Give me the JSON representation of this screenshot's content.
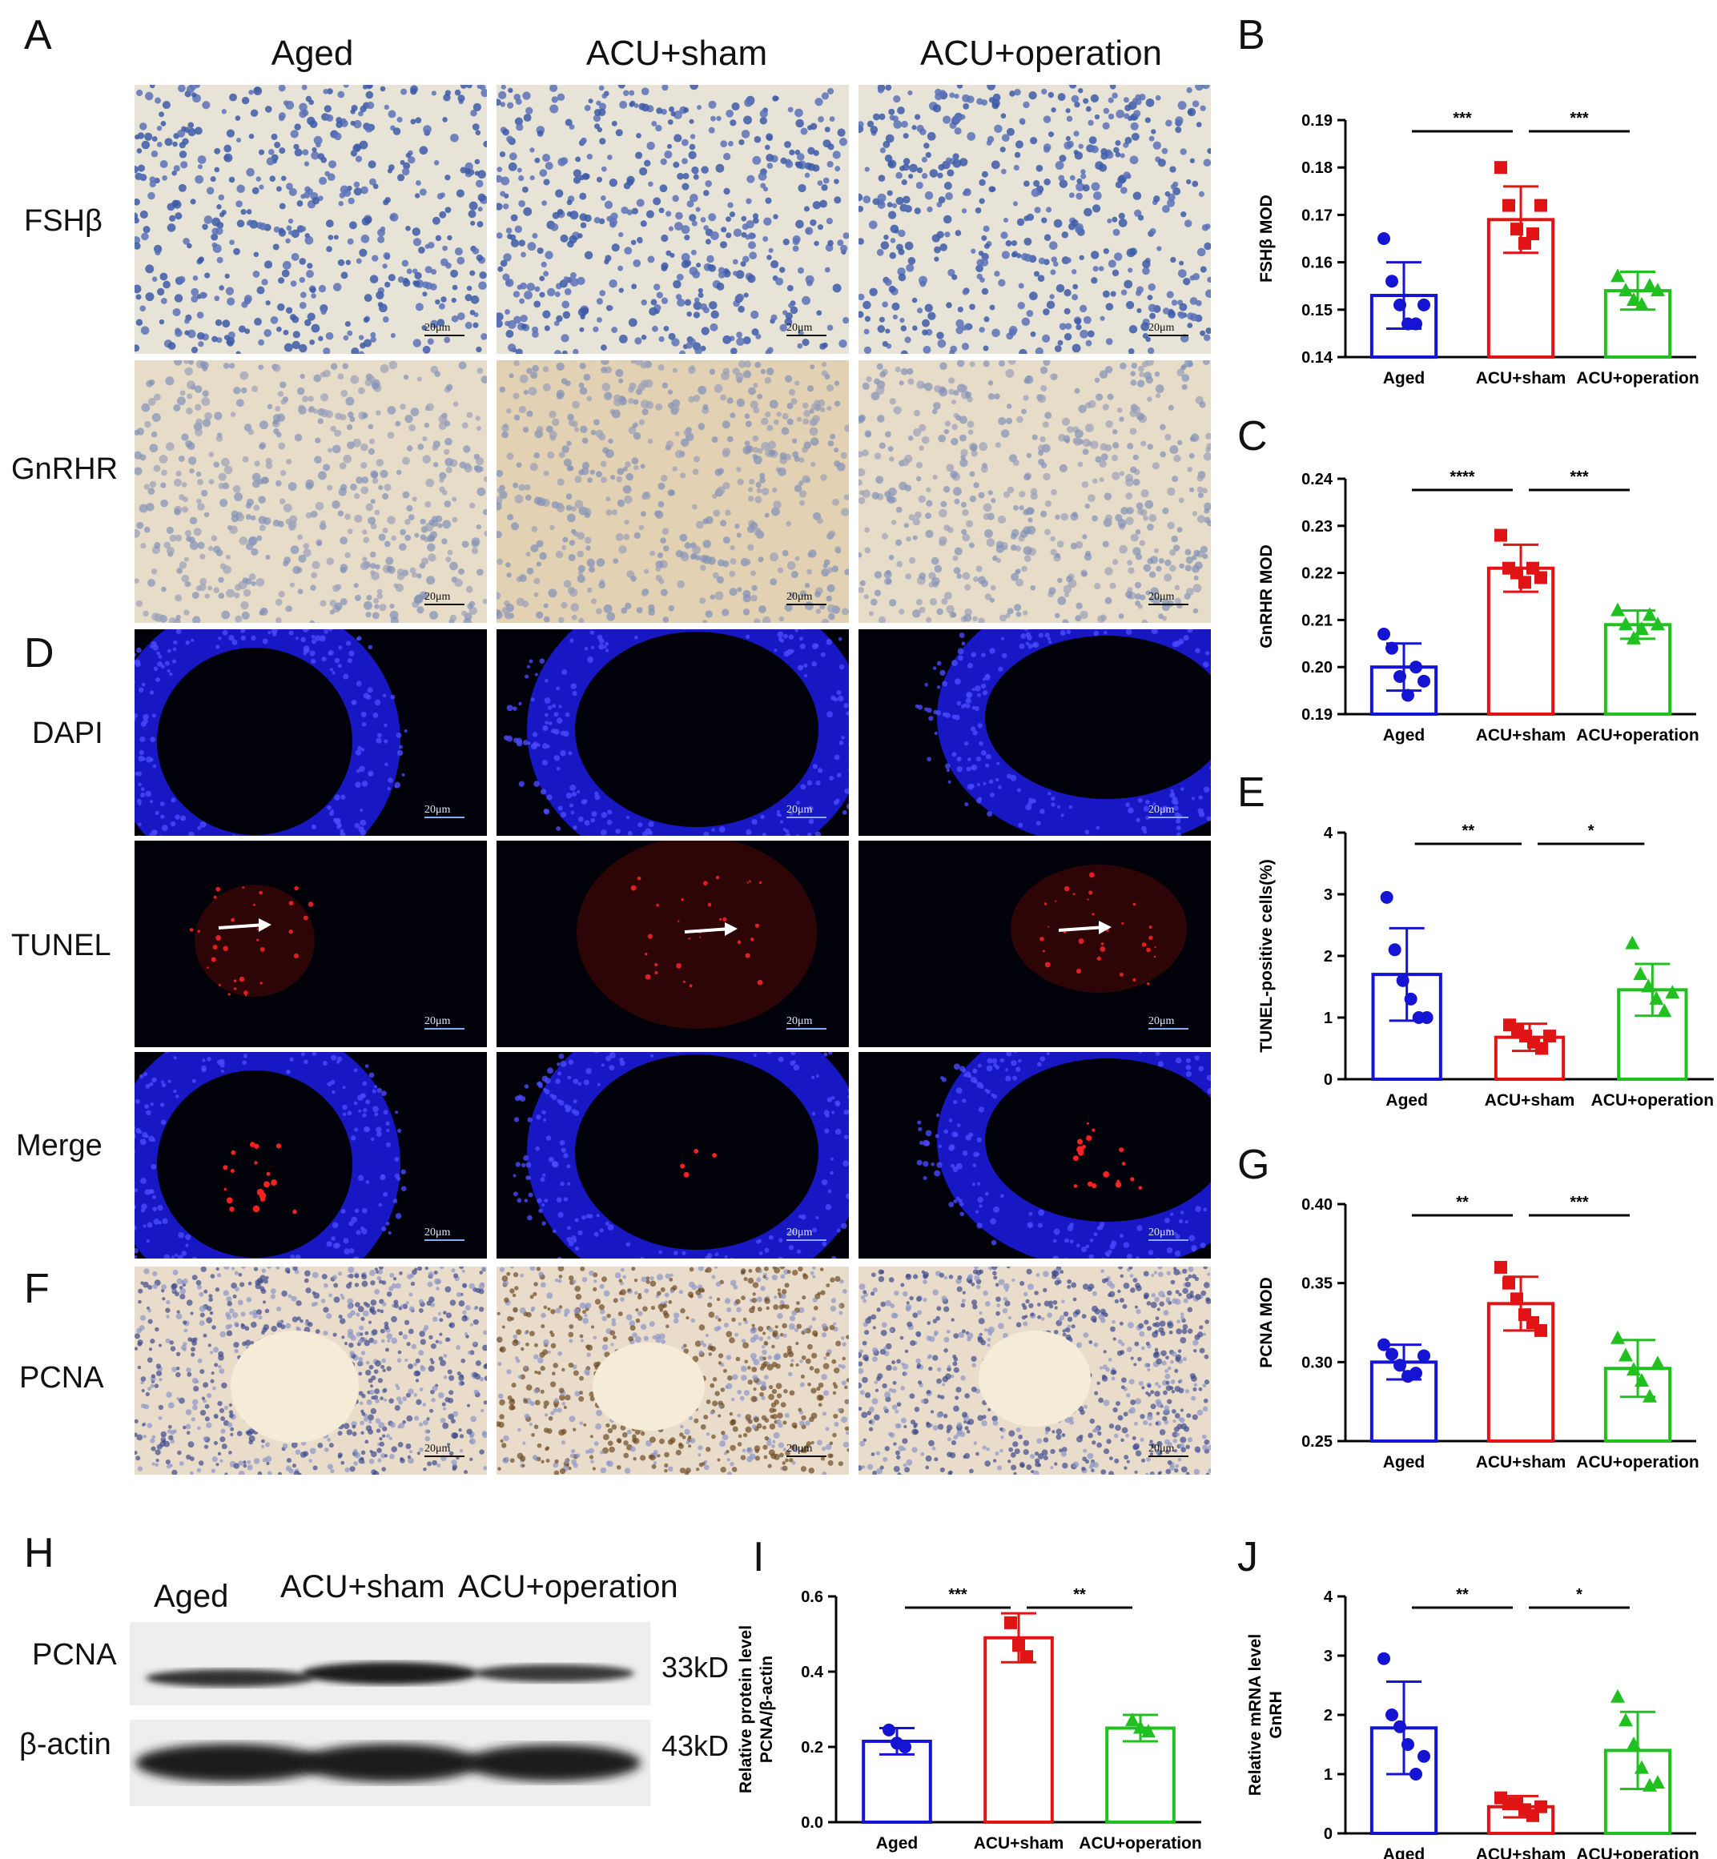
{
  "panel_letters": {
    "A": "A",
    "B": "B",
    "C": "C",
    "D": "D",
    "E": "E",
    "F": "F",
    "G": "G",
    "H": "H",
    "I": "I",
    "J": "J"
  },
  "columns": [
    "Aged",
    "ACU+sham",
    "ACU+operation"
  ],
  "rows": {
    "fsh": "FSHβ",
    "gnrhr": "GnRHR",
    "dapi": "DAPI",
    "tunel": "TUNEL",
    "merge": "Merge",
    "pcna": "PCNA"
  },
  "scale_bar": "20μm",
  "western": {
    "lanes": [
      "Aged",
      "ACU+sham",
      "ACU+operation"
    ],
    "bands": [
      {
        "name": "PCNA",
        "kd": "33kD"
      },
      {
        "name": "β-actin",
        "kd": "43kD"
      }
    ]
  },
  "colors": {
    "aged": "#1414d2",
    "sham": "#e01414",
    "operation": "#20c020"
  },
  "chart_data": [
    {
      "panel": "B",
      "type": "bar",
      "categories": [
        "Aged",
        "ACU+sham",
        "ACU+operation"
      ],
      "ylabel": "FSHβ MOD",
      "ylim": [
        0.14,
        0.19
      ],
      "yticks": [
        "0.14",
        "0.15",
        "0.16",
        "0.17",
        "0.18",
        "0.19"
      ],
      "values": [
        0.153,
        0.169,
        0.154
      ],
      "errors": [
        0.007,
        0.007,
        0.004
      ],
      "points": [
        [
          0.165,
          0.156,
          0.151,
          0.147,
          0.147,
          0.151
        ],
        [
          0.18,
          0.172,
          0.167,
          0.164,
          0.166,
          0.172
        ],
        [
          0.157,
          0.154,
          0.152,
          0.151,
          0.155,
          0.154
        ]
      ],
      "annotations": [
        "***",
        "***"
      ]
    },
    {
      "panel": "C",
      "type": "bar",
      "categories": [
        "Aged",
        "ACU+sham",
        "ACU+operation"
      ],
      "ylabel": "GnRHR MOD",
      "ylim": [
        0.19,
        0.24
      ],
      "yticks": [
        "0.19",
        "0.20",
        "0.21",
        "0.22",
        "0.23",
        "0.24"
      ],
      "values": [
        0.2,
        0.221,
        0.209
      ],
      "errors": [
        0.005,
        0.005,
        0.003
      ],
      "points": [
        [
          0.207,
          0.204,
          0.198,
          0.194,
          0.2,
          0.197
        ],
        [
          0.228,
          0.221,
          0.22,
          0.218,
          0.221,
          0.219
        ],
        [
          0.212,
          0.209,
          0.206,
          0.208,
          0.211,
          0.209
        ]
      ],
      "annotations": [
        "****",
        "***"
      ]
    },
    {
      "panel": "E",
      "type": "bar",
      "categories": [
        "Aged",
        "ACU+sham",
        "ACU+operation"
      ],
      "ylabel": "TUNEL-positive cells(%)",
      "ylim": [
        0,
        4
      ],
      "yticks": [
        "0",
        "1",
        "2",
        "3",
        "4"
      ],
      "values": [
        1.7,
        0.68,
        1.45
      ],
      "errors": [
        0.75,
        0.22,
        0.42
      ],
      "points": [
        [
          2.95,
          2.1,
          1.6,
          1.3,
          1.0,
          1.0
        ],
        [
          0.88,
          0.8,
          0.7,
          0.6,
          0.5,
          0.7
        ],
        [
          2.2,
          1.7,
          1.5,
          1.3,
          1.1,
          1.4
        ]
      ],
      "annotations": [
        "**",
        "*"
      ]
    },
    {
      "panel": "G",
      "type": "bar",
      "categories": [
        "Aged",
        "ACU+sham",
        "ACU+operation"
      ],
      "ylabel": "PCNA MOD",
      "ylim": [
        0.25,
        0.4
      ],
      "yticks": [
        "0.25",
        "0.30",
        "0.35",
        "0.40"
      ],
      "values": [
        0.3,
        0.337,
        0.296
      ],
      "errors": [
        0.011,
        0.017,
        0.018
      ],
      "points": [
        [
          0.311,
          0.305,
          0.298,
          0.291,
          0.293,
          0.304
        ],
        [
          0.36,
          0.35,
          0.34,
          0.33,
          0.325,
          0.32
        ],
        [
          0.315,
          0.304,
          0.295,
          0.288,
          0.278,
          0.299
        ]
      ],
      "annotations": [
        "**",
        "***"
      ]
    },
    {
      "panel": "I",
      "type": "bar",
      "categories": [
        "Aged",
        "ACU+sham",
        "ACU+operation"
      ],
      "ylabel": "Relative protein level PCNA/β-actin",
      "ylim": [
        0,
        0.6
      ],
      "yticks": [
        "0.0",
        "0.2",
        "0.4",
        "0.6"
      ],
      "values": [
        0.215,
        0.49,
        0.25
      ],
      "errors": [
        0.035,
        0.065,
        0.035
      ],
      "points": [
        [
          0.245,
          0.21,
          0.2
        ],
        [
          0.53,
          0.47,
          0.44
        ],
        [
          0.27,
          0.25,
          0.24
        ]
      ],
      "annotations": [
        "***",
        "**"
      ]
    },
    {
      "panel": "J",
      "type": "bar",
      "categories": [
        "Aged",
        "ACU+sham",
        "ACU+operation"
      ],
      "ylabel": "Relative mRNA level GnRH",
      "ylim": [
        0,
        4
      ],
      "yticks": [
        "0",
        "1",
        "2",
        "3",
        "4"
      ],
      "values": [
        1.78,
        0.45,
        1.4
      ],
      "errors": [
        0.78,
        0.18,
        0.65
      ],
      "points": [
        [
          2.95,
          2.0,
          1.8,
          1.5,
          1.0,
          1.3
        ],
        [
          0.6,
          0.5,
          0.5,
          0.4,
          0.3,
          0.45
        ],
        [
          2.3,
          1.9,
          1.5,
          1.1,
          0.8,
          0.85
        ]
      ],
      "annotations": [
        "**",
        "*"
      ]
    }
  ]
}
